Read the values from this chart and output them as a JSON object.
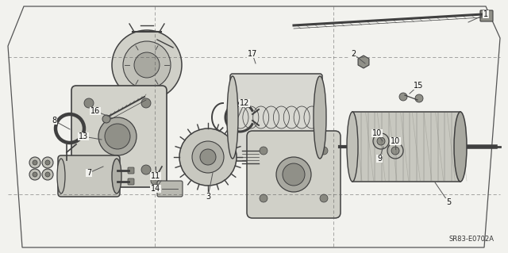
{
  "background_color": "#f2f2ee",
  "border_line_color": "#555555",
  "part_stroke_color": "#404040",
  "label_font_size": 7,
  "ref_code": "SR83-E0702A",
  "fig_w": 6.4,
  "fig_h": 3.19,
  "dpi": 100,
  "label_data": [
    [
      "1",
      612,
      18,
      590,
      28
    ],
    [
      "2",
      445,
      68,
      460,
      80
    ],
    [
      "3",
      262,
      248,
      268,
      218
    ],
    [
      "5",
      565,
      255,
      548,
      230
    ],
    [
      "7",
      112,
      218,
      130,
      210
    ],
    [
      "8",
      68,
      152,
      88,
      163
    ],
    [
      "9",
      478,
      200,
      483,
      185
    ],
    [
      "10",
      475,
      168,
      482,
      178
    ],
    [
      "10",
      498,
      178,
      498,
      188
    ],
    [
      "11",
      196,
      222,
      196,
      210
    ],
    [
      "12",
      308,
      130,
      298,
      152
    ],
    [
      "13",
      105,
      172,
      128,
      176
    ],
    [
      "14",
      196,
      238,
      203,
      228
    ],
    [
      "15",
      527,
      108,
      516,
      118
    ],
    [
      "16",
      120,
      140,
      140,
      148
    ],
    [
      "17",
      318,
      68,
      322,
      80
    ]
  ]
}
